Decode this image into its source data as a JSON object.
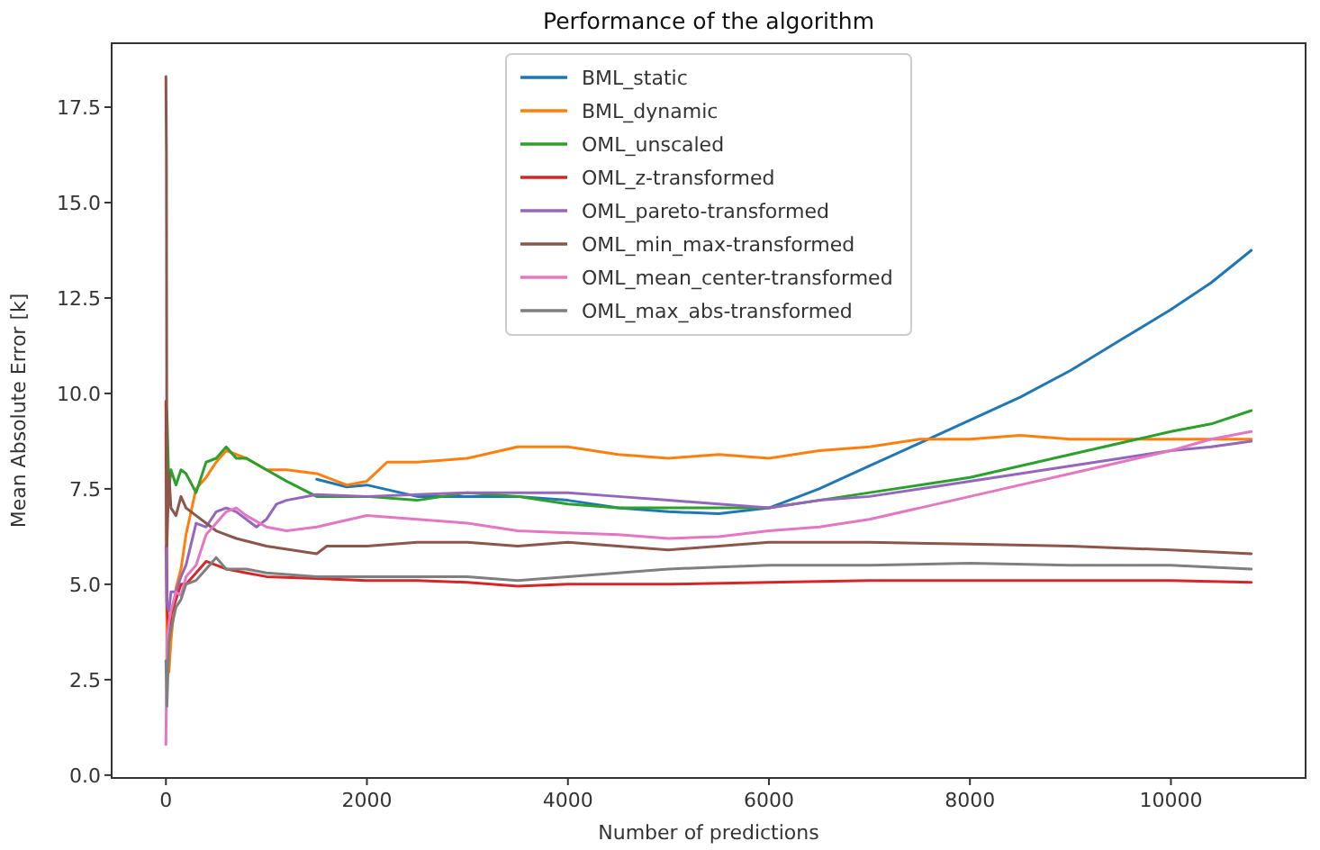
{
  "chart_data": {
    "type": "line",
    "title": "Performance of the algorithm",
    "xlabel": "Number of predictions",
    "ylabel": "Mean Absolute Error [k]",
    "xlim": [
      -540,
      11340
    ],
    "ylim": [
      -0.075,
      19.175
    ],
    "xticks": [
      0,
      2000,
      4000,
      6000,
      8000,
      10000
    ],
    "yticks": [
      {
        "value": 0,
        "label": "0.0"
      },
      {
        "value": 2.5,
        "label": "2.5"
      },
      {
        "value": 5,
        "label": "5.0"
      },
      {
        "value": 7.5,
        "label": "7.5"
      },
      {
        "value": 10,
        "label": "10.0"
      },
      {
        "value": 12.5,
        "label": "12.5"
      },
      {
        "value": 15,
        "label": "15.0"
      },
      {
        "value": 17.5,
        "label": "17.5"
      }
    ],
    "grid": false,
    "legend": "top",
    "marker": "none",
    "line_style": "solid",
    "series": [
      {
        "name": "BML_static",
        "color": "#1f77b4",
        "x": [
          1500,
          1800,
          2000,
          2500,
          3000,
          3500,
          4000,
          4500,
          5000,
          5500,
          6000,
          6500,
          7000,
          7500,
          8000,
          8500,
          9000,
          9500,
          10000,
          10400,
          10800
        ],
        "values": [
          7.75,
          7.55,
          7.6,
          7.3,
          7.3,
          7.3,
          7.2,
          7,
          6.9,
          6.85,
          7,
          7.5,
          8.1,
          8.7,
          9.3,
          9.9,
          10.6,
          11.4,
          12.2,
          12.9,
          13.75
        ]
      },
      {
        "name": "BML_dynamic",
        "color": "#ff7f0e",
        "x": [
          0,
          10,
          30,
          50,
          100,
          150,
          200,
          300,
          400,
          500,
          600,
          700,
          800,
          1000,
          1200,
          1500,
          1800,
          2000,
          2200,
          2500,
          3000,
          3500,
          4000,
          4500,
          5000,
          5500,
          6000,
          6500,
          7000,
          7500,
          8000,
          8500,
          9000,
          9500,
          10000,
          10400,
          10800
        ],
        "values": [
          9,
          3,
          2.7,
          3.5,
          4.9,
          5.4,
          6.3,
          7.5,
          7.8,
          8.2,
          8.5,
          8.4,
          8.3,
          8,
          8,
          7.9,
          7.6,
          7.7,
          8.2,
          8.2,
          8.3,
          8.6,
          8.6,
          8.4,
          8.3,
          8.4,
          8.3,
          8.5,
          8.6,
          8.8,
          8.8,
          8.9,
          8.8,
          8.8,
          8.8,
          8.8,
          8.8
        ]
      },
      {
        "name": "OML_unscaled",
        "color": "#2ca02c",
        "x": [
          0,
          10,
          30,
          50,
          100,
          150,
          200,
          300,
          400,
          500,
          600,
          700,
          800,
          1000,
          1200,
          1500,
          1800,
          2000,
          2500,
          3000,
          3500,
          4000,
          4500,
          5000,
          5500,
          6000,
          6500,
          7000,
          7500,
          8000,
          8500,
          9000,
          9500,
          10000,
          10400,
          10800
        ],
        "values": [
          9.7,
          9.5,
          7.5,
          8,
          7.6,
          8,
          7.9,
          7.4,
          8.2,
          8.3,
          8.6,
          8.3,
          8.3,
          8,
          7.7,
          7.3,
          7.3,
          7.3,
          7.2,
          7.4,
          7.3,
          7.1,
          7,
          7,
          7,
          7,
          7.2,
          7.4,
          7.6,
          7.8,
          8.1,
          8.4,
          8.7,
          9,
          9.2,
          9.55
        ]
      },
      {
        "name": "OML_z-transformed",
        "color": "#d62728",
        "x": [
          0,
          10,
          30,
          50,
          100,
          150,
          200,
          300,
          400,
          500,
          600,
          800,
          1000,
          1500,
          2000,
          2500,
          3000,
          3500,
          4000,
          4500,
          5000,
          6000,
          7000,
          8000,
          9000,
          10000,
          10800
        ],
        "values": [
          9.8,
          4.5,
          3.5,
          4.2,
          4.6,
          5,
          5,
          5.3,
          5.6,
          5.5,
          5.4,
          5.3,
          5.2,
          5.15,
          5.1,
          5.1,
          5.05,
          4.95,
          5,
          5,
          5,
          5.05,
          5.1,
          5.1,
          5.1,
          5.1,
          5.05
        ]
      },
      {
        "name": "OML_pareto-transformed",
        "color": "#9467bd",
        "x": [
          0,
          10,
          30,
          50,
          100,
          150,
          200,
          300,
          400,
          500,
          600,
          700,
          800,
          900,
          1000,
          1100,
          1200,
          1500,
          2000,
          2500,
          3000,
          3500,
          4000,
          4500,
          5000,
          5500,
          6000,
          6500,
          7000,
          7500,
          8000,
          8500,
          9000,
          9500,
          10000,
          10400,
          10800
        ],
        "values": [
          6,
          4.5,
          4.3,
          4.8,
          4.8,
          5.2,
          5.5,
          6.6,
          6.5,
          6.9,
          7,
          6.9,
          6.7,
          6.5,
          6.7,
          7.1,
          7.2,
          7.35,
          7.3,
          7.35,
          7.4,
          7.4,
          7.4,
          7.3,
          7.2,
          7.1,
          7,
          7.2,
          7.3,
          7.5,
          7.7,
          7.9,
          8.1,
          8.3,
          8.5,
          8.6,
          8.75
        ]
      },
      {
        "name": "OML_min_max-transformed",
        "color": "#8c564b",
        "x": [
          0,
          5,
          10,
          30,
          50,
          100,
          150,
          200,
          300,
          400,
          500,
          700,
          1000,
          1500,
          1600,
          2000,
          2500,
          3000,
          3500,
          4000,
          4500,
          5000,
          5500,
          6000,
          7000,
          8000,
          9000,
          10000,
          10800
        ],
        "values": [
          18.3,
          16.3,
          6,
          7.9,
          7,
          6.8,
          7.3,
          7,
          6.8,
          6.6,
          6.4,
          6.2,
          6,
          5.8,
          6,
          6,
          6.1,
          6.1,
          6,
          6.1,
          6,
          5.9,
          6,
          6.1,
          6.1,
          6.05,
          6,
          5.9,
          5.8
        ]
      },
      {
        "name": "OML_mean_center-transformed",
        "color": "#e377c2",
        "x": [
          0,
          10,
          30,
          50,
          100,
          150,
          200,
          300,
          400,
          500,
          600,
          700,
          800,
          1000,
          1200,
          1500,
          2000,
          2500,
          3000,
          3500,
          4000,
          4500,
          5000,
          5500,
          6000,
          6500,
          7000,
          7500,
          8000,
          8500,
          9000,
          9500,
          10000,
          10400,
          10800
        ],
        "values": [
          0.8,
          3.5,
          4,
          4.3,
          4.8,
          4.7,
          5.2,
          5.5,
          6.3,
          6.6,
          6.9,
          7,
          6.8,
          6.5,
          6.4,
          6.5,
          6.8,
          6.7,
          6.6,
          6.4,
          6.35,
          6.3,
          6.2,
          6.25,
          6.4,
          6.5,
          6.7,
          7,
          7.3,
          7.6,
          7.9,
          8.2,
          8.5,
          8.8,
          9
        ]
      },
      {
        "name": "OML_max_abs-transformed",
        "color": "#7f7f7f",
        "x": [
          0,
          10,
          30,
          50,
          100,
          150,
          200,
          300,
          400,
          500,
          600,
          800,
          1000,
          1500,
          2000,
          2500,
          3000,
          3500,
          4000,
          4500,
          5000,
          5500,
          6000,
          7000,
          8000,
          9000,
          10000,
          10800
        ],
        "values": [
          3,
          1.8,
          3.5,
          3.8,
          4.4,
          4.6,
          5,
          5.1,
          5.4,
          5.7,
          5.4,
          5.4,
          5.3,
          5.2,
          5.2,
          5.2,
          5.2,
          5.1,
          5.2,
          5.3,
          5.4,
          5.45,
          5.5,
          5.5,
          5.55,
          5.5,
          5.5,
          5.4
        ]
      }
    ]
  }
}
